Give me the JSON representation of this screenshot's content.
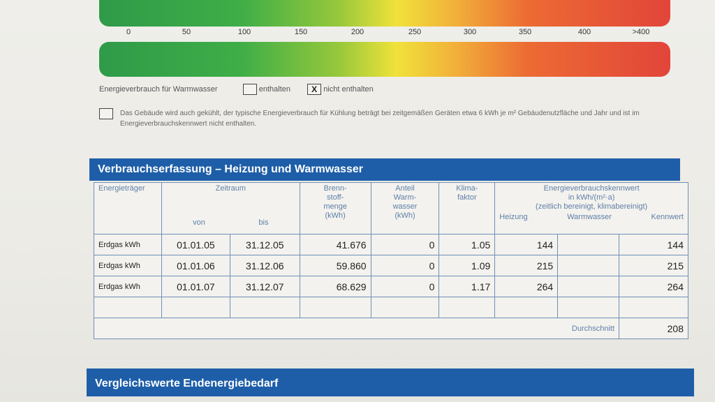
{
  "scale": {
    "ticks": [
      "0",
      "50",
      "100",
      "150",
      "200",
      "250",
      "300",
      "350",
      "400",
      ">400"
    ]
  },
  "warm_water": {
    "label": "Energieverbrauch für Warmwasser",
    "option1_label": "enthalten",
    "option1_checked": false,
    "option2_mark": "X",
    "option2_label": "nicht enthalten",
    "option2_checked": true
  },
  "cooling_note": "Das Gebäude wird auch gekühlt, der typische Energieverbrauch für Kühlung beträgt bei zeitgemäßen Geräten etwa 6 kWh je m² Gebäudenutzfläche und Jahr und ist im Energieverbrauchskennwert nicht enthalten.",
  "section1": {
    "title": "Verbrauchserfassung – Heizung und Warmwasser",
    "headers": {
      "energietraeger": "Energieträger",
      "zeitraum": "Zeitraum",
      "von": "von",
      "bis": "bis",
      "brennstoff": "Brenn-\nstoff-\nmenge\n(kWh)",
      "anteil": "Anteil\nWarm-\nwasser\n(kWh)",
      "klima": "Klima-\nfaktor",
      "kennwert_title": "Energieverbrauchskennwert\nin kWh/(m²·a)\n(zeitlich bereinigt, klimabereinigt)",
      "heizung": "Heizung",
      "warmwasser": "Warmwasser",
      "kennwert": "Kennwert"
    },
    "rows": [
      {
        "traeger": "Erdgas kWh",
        "von": "01.01.05",
        "bis": "31.12.05",
        "menge": "41.676",
        "anteil": "0",
        "klima": "1.05",
        "heizung": "144",
        "warmwasser": "",
        "kennwert": "144"
      },
      {
        "traeger": "Erdgas kWh",
        "von": "01.01.06",
        "bis": "31.12.06",
        "menge": "59.860",
        "anteil": "0",
        "klima": "1.09",
        "heizung": "215",
        "warmwasser": "",
        "kennwert": "215"
      },
      {
        "traeger": "Erdgas kWh",
        "von": "01.01.07",
        "bis": "31.12.07",
        "menge": "68.629",
        "anteil": "0",
        "klima": "1.17",
        "heizung": "264",
        "warmwasser": "",
        "kennwert": "264"
      }
    ],
    "average_label": "Durchschnitt",
    "average_value": "208"
  },
  "section2": {
    "title": "Vergleichswerte Endenergiebedarf"
  }
}
